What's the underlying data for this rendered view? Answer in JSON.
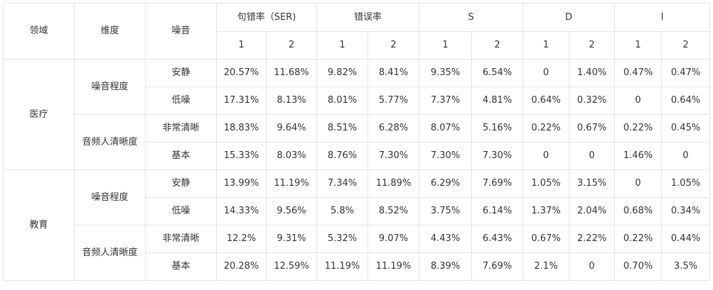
{
  "header": {
    "domain": "领域",
    "dimension": "维度",
    "noise": "噪音",
    "ser": "句错率（SER)",
    "err": "错误率",
    "s": "S",
    "d": "D",
    "i": "I",
    "sub1": "1",
    "sub2": "2"
  },
  "groups": [
    {
      "domain": "医疗",
      "dims": [
        {
          "name": "噪音程度",
          "rows": [
            {
              "noise": "安静",
              "vals": [
                "20.57%",
                "11.68%",
                "9.82%",
                "8.41%",
                "9.35%",
                "6.54%",
                "0",
                "1.40%",
                "0.47%",
                "0.47%"
              ]
            },
            {
              "noise": "低噪",
              "vals": [
                "17.31%",
                "8.13%",
                "8.01%",
                "5.77%",
                "7.37%",
                "4.81%",
                "0.64%",
                "0.32%",
                "0",
                "0.64%"
              ]
            }
          ]
        },
        {
          "name": "音频人清晰度",
          "rows": [
            {
              "noise": "非常清晰",
              "vals": [
                "18.83%",
                "9.64%",
                "8.51%",
                "6.28%",
                "8.07%",
                "5.16%",
                "0.22%",
                "0.67%",
                "0.22%",
                "0.45%"
              ]
            },
            {
              "noise": "基本",
              "vals": [
                "15.33%",
                "8.03%",
                "8.76%",
                "7.30%",
                "7.30%",
                "7.30%",
                "0",
                "0",
                "1.46%",
                "0"
              ]
            }
          ]
        }
      ]
    },
    {
      "domain": "教育",
      "dims": [
        {
          "name": "噪音程度",
          "rows": [
            {
              "noise": "安静",
              "vals": [
                "13.99%",
                "11.19%",
                "7.34%",
                "11.89%",
                "6.29%",
                "7.69%",
                "1.05%",
                "3.15%",
                "0",
                "1.05%"
              ]
            },
            {
              "noise": "低噪",
              "vals": [
                "14.33%",
                "9.56%",
                "5.8%",
                "8.52%",
                "3.75%",
                "6.14%",
                "1.37%",
                "2.04%",
                "0.68%",
                "0.34%"
              ]
            }
          ]
        },
        {
          "name": "音频人清晰度",
          "rows": [
            {
              "noise": "非常清晰",
              "vals": [
                "12.2%",
                "9.31%",
                "5.32%",
                "9.07%",
                "4.43%",
                "6.43%",
                "0.67%",
                "2.22%",
                "0.22%",
                "0.44%"
              ]
            },
            {
              "noise": "基本",
              "vals": [
                "20.28%",
                "12.59%",
                "11.19%",
                "11.19%",
                "8.39%",
                "7.69%",
                "2.1%",
                "0",
                "0.70%",
                "3.5%"
              ]
            }
          ]
        }
      ]
    }
  ]
}
